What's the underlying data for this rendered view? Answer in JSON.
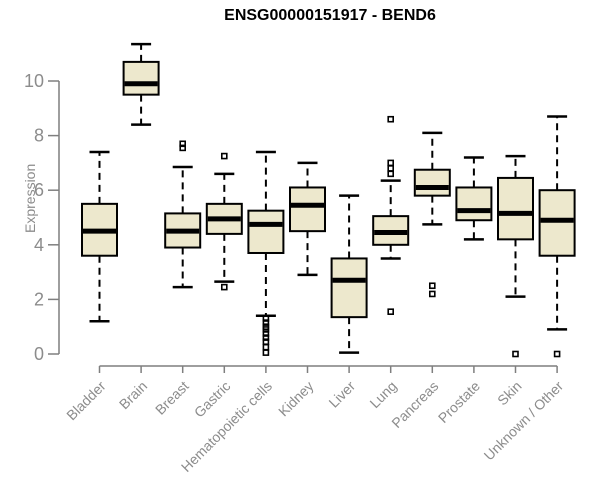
{
  "title": "ENSG00000151917 - BEND6",
  "colors": {
    "background": "#ffffff",
    "box_fill": "#EDE8CD",
    "box_stroke": "#000000",
    "median": "#000000",
    "whisker": "#000000",
    "outlier": "#000000",
    "axis": "#7f7f7f",
    "tick_label": "#8c8c8c",
    "title": "#000000"
  },
  "chart_data": {
    "type": "boxplot",
    "title": "ENSG00000151917 - BEND6",
    "xlabel": "",
    "ylabel": "Expression",
    "ylim": [
      0,
      10
    ],
    "yticks": [
      0,
      2,
      4,
      6,
      8,
      10
    ],
    "grid": false,
    "legend": "none",
    "categories": [
      "Bladder",
      "Brain",
      "Breast",
      "Gastric",
      "Hematopoietic cells",
      "Kidney",
      "Liver",
      "Lung",
      "Pancreas",
      "Prostate",
      "Skin",
      "Unknown / Other"
    ],
    "boxes": [
      {
        "category": "Bladder",
        "whisker_low": 1.2,
        "q1": 3.6,
        "median": 4.5,
        "q3": 5.5,
        "whisker_high": 7.4,
        "outliers": []
      },
      {
        "category": "Brain",
        "whisker_low": 8.4,
        "q1": 9.5,
        "median": 9.9,
        "q3": 10.7,
        "whisker_high": 11.35,
        "outliers": []
      },
      {
        "category": "Breast",
        "whisker_low": 2.45,
        "q1": 3.9,
        "median": 4.5,
        "q3": 5.15,
        "whisker_high": 6.85,
        "outliers": [
          7.55,
          7.7
        ]
      },
      {
        "category": "Gastric",
        "whisker_low": 2.65,
        "q1": 4.4,
        "median": 4.95,
        "q3": 5.5,
        "whisker_high": 6.6,
        "outliers": [
          7.25,
          2.45
        ]
      },
      {
        "category": "Hematopoietic cells",
        "whisker_low": 1.4,
        "q1": 3.7,
        "median": 4.75,
        "q3": 5.25,
        "whisker_high": 7.4,
        "outliers": [
          1.3,
          1.15,
          1.0,
          0.9,
          0.75,
          0.6,
          0.45,
          0.25,
          0.05
        ]
      },
      {
        "category": "Kidney",
        "whisker_low": 2.9,
        "q1": 4.5,
        "median": 5.45,
        "q3": 6.1,
        "whisker_high": 7.0,
        "outliers": []
      },
      {
        "category": "Liver",
        "whisker_low": 0.05,
        "q1": 1.35,
        "median": 2.7,
        "q3": 3.5,
        "whisker_high": 5.8,
        "outliers": []
      },
      {
        "category": "Lung",
        "whisker_low": 3.5,
        "q1": 4.0,
        "median": 4.45,
        "q3": 5.05,
        "whisker_high": 6.35,
        "outliers": [
          8.6,
          7.0,
          6.8,
          6.6,
          1.55
        ]
      },
      {
        "category": "Pancreas",
        "whisker_low": 4.75,
        "q1": 5.8,
        "median": 6.1,
        "q3": 6.75,
        "whisker_high": 8.1,
        "outliers": [
          2.5,
          2.2
        ]
      },
      {
        "category": "Prostate",
        "whisker_low": 4.2,
        "q1": 4.9,
        "median": 5.25,
        "q3": 6.1,
        "whisker_high": 7.2,
        "outliers": []
      },
      {
        "category": "Skin",
        "whisker_low": 2.1,
        "q1": 4.2,
        "median": 5.15,
        "q3": 6.45,
        "whisker_high": 7.25,
        "outliers": [
          0.0
        ]
      },
      {
        "category": "Unknown / Other",
        "whisker_low": 0.9,
        "q1": 3.6,
        "median": 4.9,
        "q3": 6.0,
        "whisker_high": 8.7,
        "outliers": [
          0.0
        ]
      }
    ]
  }
}
